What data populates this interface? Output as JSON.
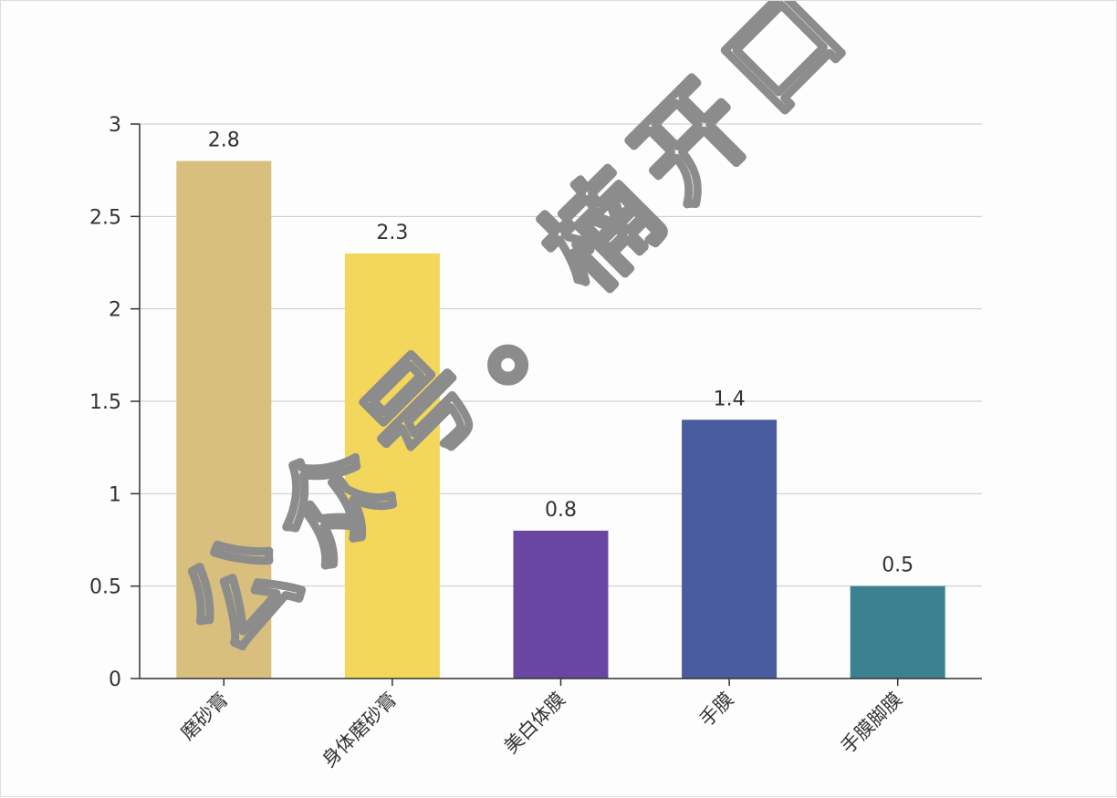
{
  "chart_data": {
    "type": "bar",
    "title": "",
    "xlabel": "",
    "ylabel": "",
    "categories": [
      "磨砂膏",
      "身体磨砂膏",
      "美白体膜",
      "手膜",
      "手膜脚膜"
    ],
    "values": [
      2.8,
      2.3,
      0.8,
      1.4,
      0.5
    ],
    "value_labels": [
      "2.8",
      "2.3",
      "0.8",
      "1.4",
      "0.5"
    ],
    "colors": [
      "#d8bf7e",
      "#f2d75c",
      "#6a46a3",
      "#4a5c9f",
      "#3d8190"
    ],
    "ylim": [
      0,
      3
    ],
    "yticks": [
      0,
      0.5,
      1,
      1.5,
      2,
      2.5,
      3
    ],
    "ytick_labels": [
      "0",
      "0.5",
      "1",
      "1.5",
      "2",
      "2.5",
      "3"
    ],
    "grid": true,
    "legend": "none"
  },
  "watermark": {
    "text": "公众号。楠开口"
  }
}
